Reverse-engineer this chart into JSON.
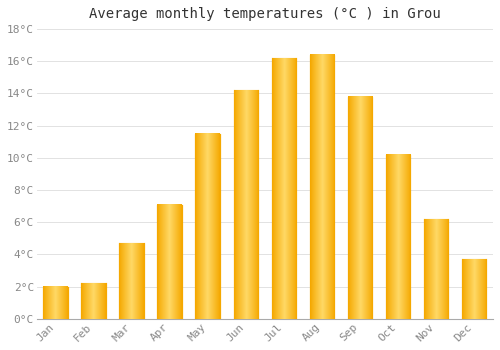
{
  "title": "Average monthly temperatures (°C ) in Grou",
  "months": [
    "Jan",
    "Feb",
    "Mar",
    "Apr",
    "May",
    "Jun",
    "Jul",
    "Aug",
    "Sep",
    "Oct",
    "Nov",
    "Dec"
  ],
  "temperatures": [
    2.0,
    2.2,
    4.7,
    7.1,
    11.5,
    14.2,
    16.2,
    16.4,
    13.8,
    10.2,
    6.2,
    3.7
  ],
  "bar_color_center": "#FFD966",
  "bar_color_edge": "#F5A800",
  "ylim": [
    0,
    18
  ],
  "yticks": [
    0,
    2,
    4,
    6,
    8,
    10,
    12,
    14,
    16,
    18
  ],
  "background_color": "#FFFFFF",
  "grid_color": "#DDDDDD",
  "title_fontsize": 10,
  "tick_fontsize": 8,
  "font_family": "monospace",
  "tick_color": "#888888",
  "bar_width": 0.65
}
